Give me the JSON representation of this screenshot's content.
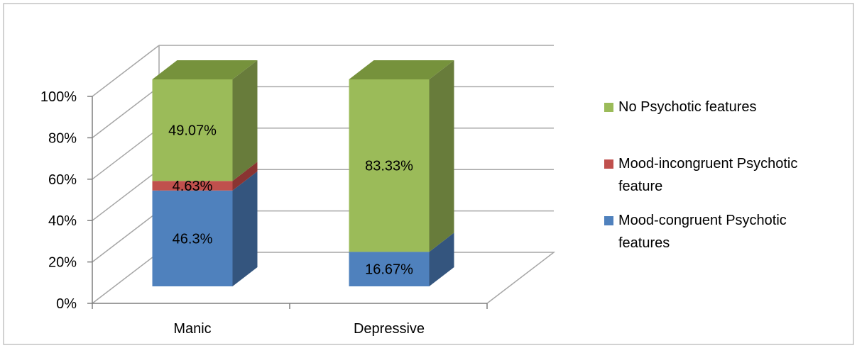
{
  "chart_data": {
    "type": "bar",
    "stacked": true,
    "three_d": true,
    "title": "",
    "xlabel": "",
    "ylabel": "",
    "categories": [
      "Manic",
      "Depressive"
    ],
    "ylim": [
      0,
      100
    ],
    "y_ticks": [
      {
        "value": 0,
        "label": "0%"
      },
      {
        "value": 20,
        "label": "20%"
      },
      {
        "value": 40,
        "label": "40%"
      },
      {
        "value": 60,
        "label": "60%"
      },
      {
        "value": 80,
        "label": "80%"
      },
      {
        "value": 100,
        "label": "100%"
      }
    ],
    "grid": true,
    "legend_position": "right",
    "series": [
      {
        "name": "Mood-congruent Psychotic features",
        "legend_lines": [
          "Mood-congruent Psychotic",
          "features"
        ],
        "color": "#4F81BD",
        "side_color": "#34557E",
        "top_color": "#4472A8",
        "values": [
          46.3,
          16.67
        ],
        "labels": [
          "46.3%",
          "16.67%"
        ]
      },
      {
        "name": "Mood-incongruent Psychotic feature",
        "legend_lines": [
          "Mood-incongruent Psychotic",
          "feature"
        ],
        "color": "#C0504D",
        "side_color": "#8A3432",
        "top_color": "#A84442",
        "values": [
          4.63,
          0
        ],
        "labels": [
          "4.63%",
          ""
        ]
      },
      {
        "name": "No Psychotic features",
        "legend_lines": [
          "No Psychotic features"
        ],
        "color": "#9BBB59",
        "side_color": "#687C3B",
        "top_color": "#76923C",
        "values": [
          49.07,
          83.33
        ],
        "labels": [
          "49.07%",
          "83.33%"
        ]
      }
    ],
    "colors": {
      "gridline": "#A6A6A6",
      "axis": "#7F7F7F",
      "border": "#A6A6A6"
    }
  }
}
